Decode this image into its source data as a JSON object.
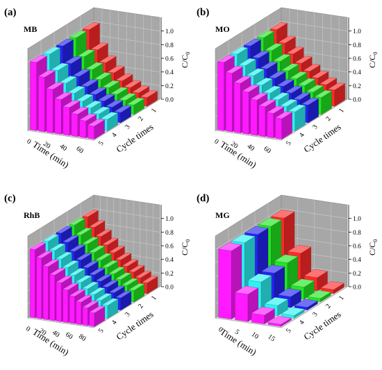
{
  "figure": {
    "panels": [
      "(a)",
      "(b)",
      "(c)",
      "(d)"
    ]
  },
  "colors": {
    "cycle_1": "#ff2a2a",
    "cycle_2": "#22e622",
    "cycle_3": "#2424f2",
    "cycle_4": "#2cf2f2",
    "cycle_5": "#ff1aff",
    "wall": "#a7a7a7",
    "grid": "#cfcfcf",
    "frame": "#8a8a8a"
  },
  "chart_data": [
    {
      "type": "bar3d",
      "panel_label": "(a)",
      "title": "MB",
      "xlabel": "Time (min)",
      "ylabel": "Cycle times",
      "zlabel": "C/C0",
      "zlim": [
        0,
        1.2
      ],
      "z_ticks": [
        "0.0",
        "0.2",
        "0.4",
        "0.6",
        "0.8",
        "1.0"
      ],
      "time": [
        0,
        10,
        20,
        30,
        40,
        50,
        60,
        70
      ],
      "time_tick_labels": [
        "0",
        "20",
        "40",
        "60"
      ],
      "cycles": [
        1,
        2,
        3,
        4,
        5
      ],
      "series": [
        {
          "name": "1",
          "values": [
            1.0,
            0.72,
            0.55,
            0.42,
            0.32,
            0.24,
            0.18,
            0.13
          ]
        },
        {
          "name": "2",
          "values": [
            1.0,
            0.74,
            0.57,
            0.44,
            0.34,
            0.26,
            0.19,
            0.14
          ]
        },
        {
          "name": "3",
          "values": [
            1.0,
            0.76,
            0.59,
            0.46,
            0.36,
            0.28,
            0.21,
            0.15
          ]
        },
        {
          "name": "4",
          "values": [
            1.0,
            0.78,
            0.61,
            0.48,
            0.38,
            0.3,
            0.23,
            0.17
          ]
        },
        {
          "name": "5",
          "values": [
            1.0,
            0.8,
            0.64,
            0.51,
            0.41,
            0.33,
            0.25,
            0.19
          ]
        }
      ]
    },
    {
      "type": "bar3d",
      "panel_label": "(b)",
      "title": "MO",
      "xlabel": "Time (min)",
      "ylabel": "Cycle times",
      "zlabel": "C/C0",
      "zlim": [
        0,
        1.2
      ],
      "z_ticks": [
        "0.0",
        "0.2",
        "0.4",
        "0.6",
        "0.8",
        "1.0"
      ],
      "time": [
        0,
        10,
        20,
        30,
        40,
        50,
        60,
        70
      ],
      "time_tick_labels": [
        "0",
        "20",
        "40",
        "60"
      ],
      "cycles": [
        1,
        2,
        3,
        4,
        5
      ],
      "series": [
        {
          "name": "1",
          "values": [
            1.0,
            0.82,
            0.68,
            0.56,
            0.46,
            0.38,
            0.3,
            0.24
          ]
        },
        {
          "name": "2",
          "values": [
            1.0,
            0.83,
            0.69,
            0.57,
            0.47,
            0.39,
            0.31,
            0.25
          ]
        },
        {
          "name": "3",
          "values": [
            1.0,
            0.84,
            0.7,
            0.58,
            0.48,
            0.4,
            0.32,
            0.26
          ]
        },
        {
          "name": "4",
          "values": [
            1.0,
            0.85,
            0.72,
            0.6,
            0.5,
            0.42,
            0.34,
            0.28
          ]
        },
        {
          "name": "5",
          "values": [
            1.0,
            0.86,
            0.73,
            0.62,
            0.52,
            0.44,
            0.36,
            0.3
          ]
        }
      ]
    },
    {
      "type": "bar3d",
      "panel_label": "(c)",
      "title": "RhB",
      "xlabel": "Time (min)",
      "ylabel": "Cycle times",
      "zlabel": "C/C0",
      "zlim": [
        0,
        1.2
      ],
      "z_ticks": [
        "0.0",
        "0.2",
        "0.4",
        "0.6",
        "0.8",
        "1.0"
      ],
      "time": [
        0,
        10,
        20,
        30,
        40,
        50,
        60,
        70,
        80,
        90
      ],
      "time_tick_labels": [
        "0",
        "20",
        "40",
        "60",
        "80"
      ],
      "cycles": [
        1,
        2,
        3,
        4,
        5
      ],
      "series": [
        {
          "name": "1",
          "values": [
            1.0,
            0.86,
            0.74,
            0.63,
            0.53,
            0.44,
            0.36,
            0.29,
            0.22,
            0.16
          ]
        },
        {
          "name": "2",
          "values": [
            1.0,
            0.87,
            0.75,
            0.64,
            0.54,
            0.45,
            0.37,
            0.3,
            0.23,
            0.17
          ]
        },
        {
          "name": "3",
          "values": [
            1.0,
            0.88,
            0.76,
            0.65,
            0.55,
            0.46,
            0.38,
            0.31,
            0.24,
            0.18
          ]
        },
        {
          "name": "4",
          "values": [
            1.0,
            0.88,
            0.77,
            0.66,
            0.56,
            0.47,
            0.39,
            0.32,
            0.25,
            0.19
          ]
        },
        {
          "name": "5",
          "values": [
            1.0,
            0.89,
            0.78,
            0.67,
            0.57,
            0.48,
            0.4,
            0.33,
            0.26,
            0.2
          ]
        }
      ]
    },
    {
      "type": "bar3d",
      "panel_label": "(d)",
      "title": "MG",
      "xlabel": "Time (min)",
      "ylabel": "Cycle times",
      "zlabel": "C/C0",
      "zlim": [
        0,
        1.2
      ],
      "z_ticks": [
        "0.0",
        "0.2",
        "0.4",
        "0.6",
        "0.8",
        "1.0"
      ],
      "time": [
        0,
        5,
        10,
        15
      ],
      "time_tick_labels": [
        "0",
        "5",
        "10",
        "15"
      ],
      "cycles": [
        1,
        2,
        3,
        4,
        5
      ],
      "series": [
        {
          "name": "1",
          "values": [
            1.0,
            0.52,
            0.2,
            0.06
          ]
        },
        {
          "name": "2",
          "values": [
            1.0,
            0.5,
            0.18,
            0.05
          ]
        },
        {
          "name": "3",
          "values": [
            1.0,
            0.47,
            0.16,
            0.04
          ]
        },
        {
          "name": "4",
          "values": [
            1.0,
            0.46,
            0.15,
            0.04
          ]
        },
        {
          "name": "5",
          "values": [
            1.0,
            0.4,
            0.13,
            0.03
          ]
        }
      ]
    }
  ]
}
